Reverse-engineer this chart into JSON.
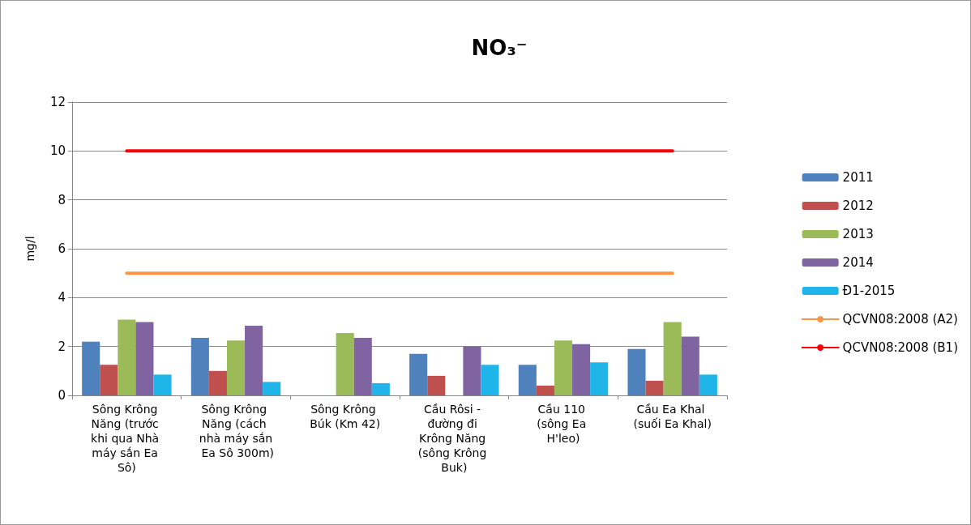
{
  "chart_data": {
    "type": "bar",
    "title": "NO₃⁻",
    "ylabel": "mg/l",
    "categories": [
      "Sông Krông Năng (trước khi qua Nhà máy sắn Ea Sô)",
      "Sông Krông Năng (cách nhà máy sắn Ea Sô 300m)",
      "Sông Krông Búk (Km 42)",
      "Cầu Rôsi - đường đi Krông Năng (sông Krông Buk)",
      "Cầu 110 (sông Ea H'leo)",
      "Cầu Ea Khal (suối Ea Khal)"
    ],
    "series": [
      {
        "name": "2011",
        "color": "#4f81bd",
        "values": [
          2.2,
          2.35,
          null,
          1.7,
          1.25,
          1.9
        ]
      },
      {
        "name": "2012",
        "color": "#c0504d",
        "values": [
          1.25,
          1.0,
          null,
          0.8,
          0.4,
          0.6
        ]
      },
      {
        "name": "2013",
        "color": "#9bbb59",
        "values": [
          3.1,
          2.25,
          2.55,
          null,
          2.25,
          3.0
        ]
      },
      {
        "name": "2014",
        "color": "#8064a2",
        "values": [
          3.0,
          2.85,
          2.35,
          2.0,
          2.1,
          2.4
        ]
      },
      {
        "name": "Đ1-2015",
        "color": "#1fb5e8",
        "values": [
          0.85,
          0.55,
          0.5,
          1.25,
          1.35,
          0.85
        ]
      },
      {
        "name": "QCVN08:2008 (A2)",
        "type": "line",
        "color": "#f79646",
        "values": [
          5,
          5,
          5,
          5,
          5,
          5
        ]
      },
      {
        "name": "QCVN08:2008 (B1)",
        "type": "line",
        "color": "#ff0000",
        "values": [
          10,
          10,
          10,
          10,
          10,
          10
        ]
      }
    ],
    "ylim": [
      0,
      12
    ],
    "yticks": [
      0,
      2,
      4,
      6,
      8,
      10,
      12
    ],
    "grid": "y",
    "legend": "right",
    "marker": "none",
    "line_style": "solid"
  }
}
